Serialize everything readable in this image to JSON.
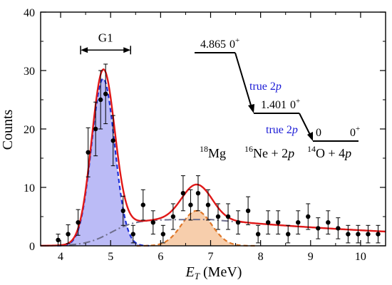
{
  "chart_data": {
    "type": "scatter",
    "xlabel_main": "E",
    "xlabel_sub": "T",
    "xlabel_unit": " (MeV)",
    "ylabel": "Counts",
    "xlim": [
      3.6,
      10.5
    ],
    "ylim": [
      0,
      40
    ],
    "x_ticks": [
      4,
      5,
      6,
      7,
      8,
      9,
      10
    ],
    "y_ticks": [
      0,
      10,
      20,
      30,
      40
    ],
    "grid": false,
    "points": [
      {
        "x": 3.95,
        "y": 1,
        "err": 1
      },
      {
        "x": 4.15,
        "y": 2,
        "err": 1.6
      },
      {
        "x": 4.35,
        "y": 4,
        "err": 2.2
      },
      {
        "x": 4.55,
        "y": 16,
        "err": 4.2
      },
      {
        "x": 4.7,
        "y": 20,
        "err": 4.6
      },
      {
        "x": 4.8,
        "y": 25,
        "err": 5
      },
      {
        "x": 4.9,
        "y": 26,
        "err": 5.1
      },
      {
        "x": 5.05,
        "y": 18,
        "err": 4.3
      },
      {
        "x": 5.25,
        "y": 6,
        "err": 2.5
      },
      {
        "x": 5.45,
        "y": 2,
        "err": 1.5
      },
      {
        "x": 5.65,
        "y": 7,
        "err": 2.6
      },
      {
        "x": 5.85,
        "y": 4,
        "err": 2
      },
      {
        "x": 6.05,
        "y": 2,
        "err": 1.5
      },
      {
        "x": 6.25,
        "y": 5,
        "err": 2.2
      },
      {
        "x": 6.45,
        "y": 9,
        "err": 3
      },
      {
        "x": 6.6,
        "y": 7,
        "err": 2.6
      },
      {
        "x": 6.75,
        "y": 9,
        "err": 3
      },
      {
        "x": 6.95,
        "y": 7,
        "err": 2.6
      },
      {
        "x": 7.15,
        "y": 5,
        "err": 2.2
      },
      {
        "x": 7.35,
        "y": 5,
        "err": 2.2
      },
      {
        "x": 7.55,
        "y": 4,
        "err": 2
      },
      {
        "x": 7.75,
        "y": 6,
        "err": 2.4
      },
      {
        "x": 7.95,
        "y": 2,
        "err": 1.5
      },
      {
        "x": 8.15,
        "y": 4,
        "err": 2
      },
      {
        "x": 8.35,
        "y": 4,
        "err": 2
      },
      {
        "x": 8.55,
        "y": 2,
        "err": 1.5
      },
      {
        "x": 8.75,
        "y": 4,
        "err": 2
      },
      {
        "x": 8.95,
        "y": 5,
        "err": 2.2
      },
      {
        "x": 9.15,
        "y": 3,
        "err": 1.8
      },
      {
        "x": 9.35,
        "y": 4,
        "err": 2
      },
      {
        "x": 9.55,
        "y": 3,
        "err": 1.8
      },
      {
        "x": 9.75,
        "y": 2,
        "err": 1.5
      },
      {
        "x": 9.95,
        "y": 2,
        "err": 1.5
      },
      {
        "x": 10.15,
        "y": 2,
        "err": 1.5
      },
      {
        "x": 10.35,
        "y": 2,
        "err": 1.5
      }
    ],
    "peak1": {
      "center": 4.85,
      "amp": 28.6,
      "sigma": 0.23,
      "fill": "#b4b4f5",
      "line": "#1e2fd6"
    },
    "peak2": {
      "center": 6.72,
      "amp": 6.0,
      "sigma": 0.3,
      "fill": "#f6c9a3",
      "line": "#e0782a"
    },
    "background": {
      "rise_center": 5.0,
      "rise_width": 0.55,
      "max": 4.5,
      "decay_per_mev": 0.35,
      "peak_x": 7.0,
      "line": "#6e6e8c"
    },
    "total_line": "#e01818",
    "g1": {
      "label": "G1",
      "x_from": 4.4,
      "x_to": 5.4,
      "y": 33.5
    },
    "annotations": {
      "level1": {
        "energy": "4.865",
        "spin": "0",
        "parity": "+"
      },
      "level2": {
        "energy": "1.401",
        "spin": "0",
        "parity": "+"
      },
      "level3": {
        "energy": "0",
        "spin": "0",
        "parity": "+"
      },
      "true2p_1": {
        "prefix": "true 2",
        "italic": "p"
      },
      "true2p_2": {
        "prefix": "true 2",
        "italic": "p"
      },
      "nucleus1": {
        "mass": "18",
        "symbol": "Mg"
      },
      "nucleus2": {
        "mass": "16",
        "symbol": "Ne + 2",
        "italic": "p"
      },
      "nucleus3": {
        "mass": "14",
        "symbol": "O + 4",
        "italic": "p"
      }
    }
  }
}
